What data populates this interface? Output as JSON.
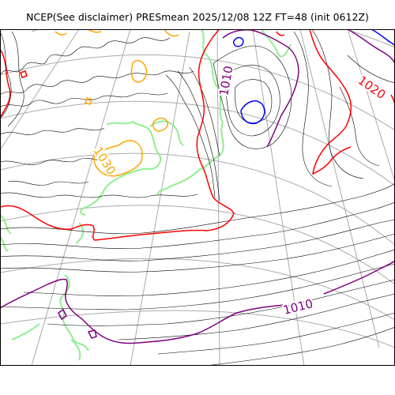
{
  "title": "NCEP(See disclaimer) PRESmean 2025/12/08 12Z FT=48 (init 0612Z)",
  "contour_labels": [
    {
      "text": "1010",
      "color": "#800080"
    },
    {
      "text": "1010",
      "color": "#800080"
    },
    {
      "text": "1020",
      "color": "#ff0000"
    },
    {
      "text": "1030",
      "color": "#ffa500"
    }
  ],
  "colors": {
    "coastline": "#90ee90",
    "isobar": "#000000",
    "gridline": "#aaaaaa",
    "isobar_1010": "#800080",
    "isobar_1020": "#ff0000",
    "isobar_1030": "#ffa500",
    "low_center": "#0000ff"
  }
}
